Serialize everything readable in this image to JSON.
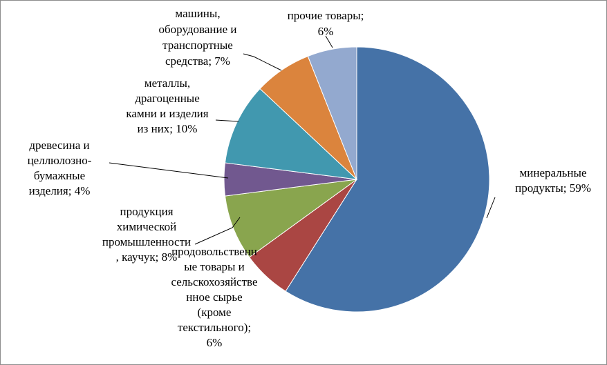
{
  "chart_data": {
    "type": "pie",
    "title": "",
    "series": [
      {
        "values": [
          59,
          6,
          8,
          4,
          10,
          7,
          6
        ],
        "categories": [
          "минеральные продукты",
          "продовольственные товары и сельскохозяйственное сырье (кроме текстильного)",
          "продукция химической промышленности, каучук",
          "древесина и целлюлозно-бумажные изделия",
          "металлы, драгоценные камни и изделия из них",
          "машины, оборудование и транспортные средства",
          "прочие товары"
        ]
      }
    ],
    "colors": [
      "#4572A7",
      "#AA4643",
      "#89A54E",
      "#71588F",
      "#4198AF",
      "#DB843D",
      "#93A9CF"
    ],
    "labels": [
      [
        "минеральные",
        "продукты; 59%"
      ],
      [
        "продовольственн",
        "ые товары и",
        "сельскохозяйстве",
        "нное сырье",
        "(кроме",
        "текстильного);",
        "6%"
      ],
      [
        "продукция",
        "химической",
        "промышленности",
        ", каучук; 8%"
      ],
      [
        "древесина и",
        "целлюлозно-",
        "бумажные",
        "изделия; 4%"
      ],
      [
        "металлы,",
        "драгоценные",
        "камни и изделия",
        "из них; 10%"
      ],
      [
        "машины,",
        "оборудование и",
        "транспортные",
        "средства; 7%"
      ],
      [
        "прочие товары;",
        "6%"
      ]
    ]
  }
}
